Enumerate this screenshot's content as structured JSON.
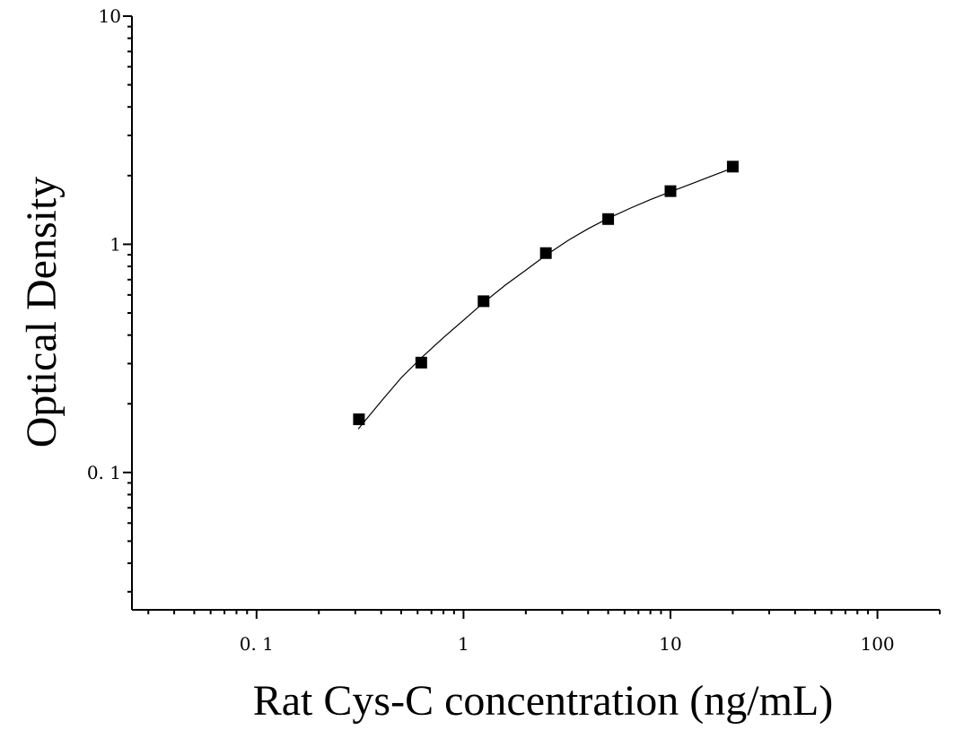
{
  "chart_data": {
    "type": "scatter",
    "title": "",
    "xlabel": "Rat Cys-C concentration (ng/mL)",
    "ylabel": "Optical Density",
    "x_scale": "log",
    "y_scale": "log",
    "xlim": [
      0.025,
      200
    ],
    "ylim": [
      0.025,
      10
    ],
    "x_ticks": [
      0.1,
      1,
      10,
      100
    ],
    "x_tick_labels": [
      "0. 1",
      "1",
      "10",
      "100"
    ],
    "y_ticks": [
      0.1,
      1,
      10
    ],
    "y_tick_labels": [
      "0. 1",
      "1",
      "10"
    ],
    "grid": false,
    "series": [
      {
        "x": [
          0.3125,
          0.625,
          1.25,
          2.5,
          5,
          10,
          20
        ],
        "y": [
          0.171,
          0.303,
          0.563,
          0.915,
          1.29,
          1.71,
          2.19
        ]
      }
    ],
    "fit_curve": {
      "x": [
        0.31,
        0.4,
        0.5,
        0.625,
        0.8,
        1.0,
        1.25,
        1.6,
        2.0,
        2.5,
        3.2,
        4.0,
        5.0,
        6.4,
        8.0,
        10.0,
        12.8,
        16.0,
        20.0
      ],
      "y": [
        0.155,
        0.205,
        0.26,
        0.318,
        0.39,
        0.465,
        0.555,
        0.665,
        0.77,
        0.895,
        1.04,
        1.17,
        1.3,
        1.44,
        1.57,
        1.7,
        1.85,
        2.0,
        2.16
      ]
    }
  }
}
